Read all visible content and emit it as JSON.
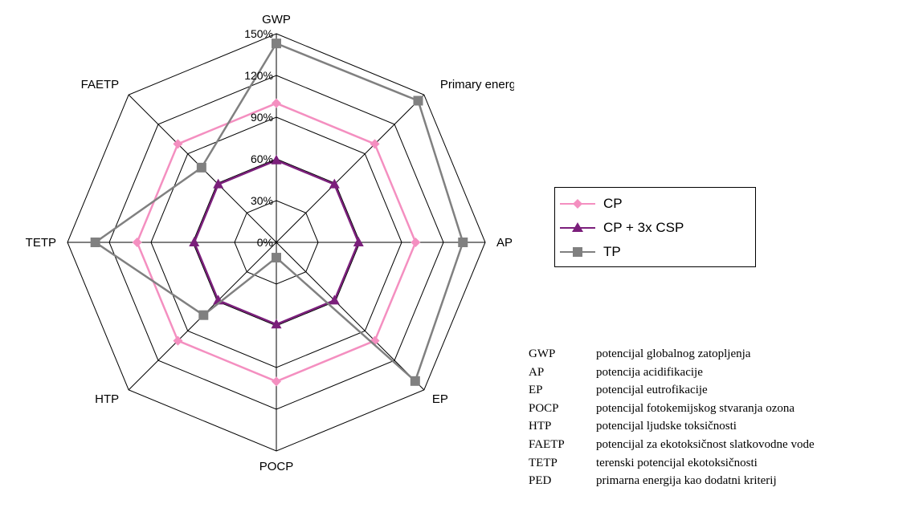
{
  "chart_data": {
    "type": "radar",
    "axes": [
      "GWP",
      "Primary energy demand",
      "AP",
      "EP",
      "POCP",
      "HTP",
      "TETP",
      "FAETP"
    ],
    "ticks": [
      "0%",
      "30%",
      "60%",
      "90%",
      "120%",
      "150%"
    ],
    "tick_values": [
      0,
      30,
      60,
      90,
      120,
      150
    ],
    "range": [
      0,
      150
    ],
    "grid": true,
    "legend_position": "right",
    "series": [
      {
        "name": "CP",
        "marker": "diamond",
        "color": "#f48fc0",
        "values": [
          100,
          100,
          100,
          100,
          100,
          100,
          100,
          100
        ]
      },
      {
        "name": "CP + 3x CSP",
        "marker": "triangle",
        "color": "#7b1f7b",
        "values": [
          59,
          59,
          59,
          59,
          59,
          59,
          59,
          59
        ]
      },
      {
        "name": "TP",
        "marker": "square",
        "color": "#808080",
        "values": [
          143,
          144,
          134,
          141,
          11,
          74,
          130,
          76
        ]
      }
    ]
  },
  "glossary": [
    {
      "abbr": "GWP",
      "desc": "potencijal globalnog zatopljenja"
    },
    {
      "abbr": "AP",
      "desc": "potencija acidifikacije"
    },
    {
      "abbr": "EP",
      "desc": "potencijal eutrofikacije"
    },
    {
      "abbr": "POCP",
      "desc": "potencijal fotokemijskog stvaranja ozona"
    },
    {
      "abbr": "HTP",
      "desc": "potencijal ljudske toksičnosti"
    },
    {
      "abbr": "FAETP",
      "desc": "potencijal za ekotoksičnost slatkovodne vode"
    },
    {
      "abbr": "TETP",
      "desc": "terenski potencijal ekotoksičnosti"
    },
    {
      "abbr": "PED",
      "desc": "primarna energija kao dodatni kriterij"
    }
  ]
}
